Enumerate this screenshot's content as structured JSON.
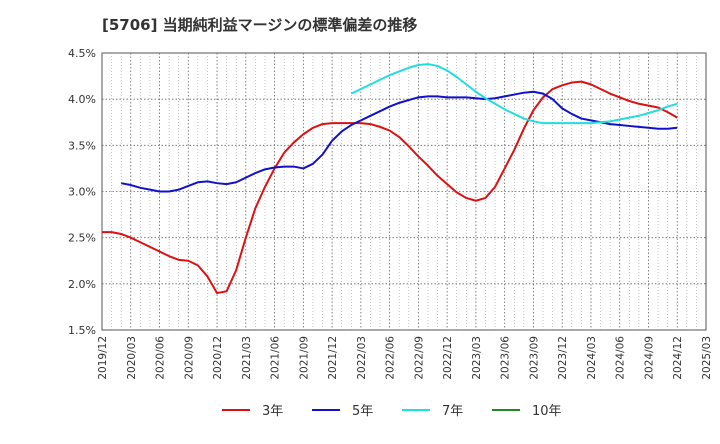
{
  "title": "[5706]  当期純利益マージンの標準偏差の推移",
  "chart_data": {
    "type": "line",
    "title": "[5706]  当期純利益マージンの標準偏差の推移",
    "xlabel": "",
    "ylabel": "",
    "x_ticks": [
      "2019/12",
      "2020/03",
      "2020/06",
      "2020/09",
      "2020/12",
      "2021/03",
      "2021/06",
      "2021/09",
      "2021/12",
      "2022/03",
      "2022/06",
      "2022/09",
      "2022/12",
      "2023/03",
      "2023/06",
      "2023/09",
      "2023/12",
      "2024/03",
      "2024/06",
      "2024/09",
      "2024/12",
      "2025/03"
    ],
    "y_ticks": [
      "1.5%",
      "2.0%",
      "2.5%",
      "3.0%",
      "3.5%",
      "4.0%",
      "4.5%"
    ],
    "ylim": [
      1.5,
      4.5
    ],
    "grid": true,
    "legend_position": "bottom",
    "series": [
      {
        "name": "3年",
        "color": "#dd1111",
        "points": [
          [
            "2019/12",
            2.56
          ],
          [
            "2020/01",
            2.56
          ],
          [
            "2020/02",
            2.54
          ],
          [
            "2020/03",
            2.5
          ],
          [
            "2020/04",
            2.45
          ],
          [
            "2020/05",
            2.4
          ],
          [
            "2020/06",
            2.35
          ],
          [
            "2020/07",
            2.3
          ],
          [
            "2020/08",
            2.26
          ],
          [
            "2020/09",
            2.25
          ],
          [
            "2020/10",
            2.2
          ],
          [
            "2020/11",
            2.08
          ],
          [
            "2020/12",
            1.9
          ],
          [
            "2021/01",
            1.92
          ],
          [
            "2021/02",
            2.15
          ],
          [
            "2021/03",
            2.5
          ],
          [
            "2021/04",
            2.82
          ],
          [
            "2021/05",
            3.05
          ],
          [
            "2021/06",
            3.25
          ],
          [
            "2021/07",
            3.42
          ],
          [
            "2021/08",
            3.53
          ],
          [
            "2021/09",
            3.62
          ],
          [
            "2021/10",
            3.69
          ],
          [
            "2021/11",
            3.73
          ],
          [
            "2021/12",
            3.74
          ],
          [
            "2022/01",
            3.74
          ],
          [
            "2022/02",
            3.74
          ],
          [
            "2022/03",
            3.74
          ],
          [
            "2022/04",
            3.73
          ],
          [
            "2022/05",
            3.7
          ],
          [
            "2022/06",
            3.66
          ],
          [
            "2022/07",
            3.59
          ],
          [
            "2022/08",
            3.49
          ],
          [
            "2022/09",
            3.38
          ],
          [
            "2022/10",
            3.28
          ],
          [
            "2022/11",
            3.17
          ],
          [
            "2022/12",
            3.08
          ],
          [
            "2023/01",
            2.99
          ],
          [
            "2023/02",
            2.93
          ],
          [
            "2023/03",
            2.9
          ],
          [
            "2023/04",
            2.93
          ],
          [
            "2023/05",
            3.05
          ],
          [
            "2023/06",
            3.25
          ],
          [
            "2023/07",
            3.45
          ],
          [
            "2023/08",
            3.68
          ],
          [
            "2023/09",
            3.88
          ],
          [
            "2023/10",
            4.02
          ],
          [
            "2023/11",
            4.11
          ],
          [
            "2023/12",
            4.15
          ],
          [
            "2024/01",
            4.18
          ],
          [
            "2024/02",
            4.19
          ],
          [
            "2024/03",
            4.16
          ],
          [
            "2024/04",
            4.11
          ],
          [
            "2024/05",
            4.06
          ],
          [
            "2024/06",
            4.02
          ],
          [
            "2024/07",
            3.98
          ],
          [
            "2024/08",
            3.95
          ],
          [
            "2024/09",
            3.93
          ],
          [
            "2024/10",
            3.91
          ],
          [
            "2024/11",
            3.86
          ],
          [
            "2024/12",
            3.8
          ]
        ]
      },
      {
        "name": "5年",
        "color": "#1111cc",
        "points": [
          [
            "2020/02",
            3.09
          ],
          [
            "2020/03",
            3.07
          ],
          [
            "2020/04",
            3.04
          ],
          [
            "2020/05",
            3.02
          ],
          [
            "2020/06",
            3.0
          ],
          [
            "2020/07",
            3.0
          ],
          [
            "2020/08",
            3.02
          ],
          [
            "2020/09",
            3.06
          ],
          [
            "2020/10",
            3.1
          ],
          [
            "2020/11",
            3.11
          ],
          [
            "2020/12",
            3.09
          ],
          [
            "2021/01",
            3.08
          ],
          [
            "2021/02",
            3.1
          ],
          [
            "2021/03",
            3.15
          ],
          [
            "2021/04",
            3.2
          ],
          [
            "2021/05",
            3.24
          ],
          [
            "2021/06",
            3.26
          ],
          [
            "2021/07",
            3.27
          ],
          [
            "2021/08",
            3.27
          ],
          [
            "2021/09",
            3.25
          ],
          [
            "2021/10",
            3.3
          ],
          [
            "2021/11",
            3.4
          ],
          [
            "2021/12",
            3.55
          ],
          [
            "2022/01",
            3.65
          ],
          [
            "2022/02",
            3.72
          ],
          [
            "2022/03",
            3.77
          ],
          [
            "2022/04",
            3.82
          ],
          [
            "2022/05",
            3.87
          ],
          [
            "2022/06",
            3.92
          ],
          [
            "2022/07",
            3.96
          ],
          [
            "2022/08",
            3.99
          ],
          [
            "2022/09",
            4.02
          ],
          [
            "2022/10",
            4.03
          ],
          [
            "2022/11",
            4.03
          ],
          [
            "2022/12",
            4.02
          ],
          [
            "2023/01",
            4.02
          ],
          [
            "2023/02",
            4.02
          ],
          [
            "2023/03",
            4.01
          ],
          [
            "2023/04",
            4.0
          ],
          [
            "2023/05",
            4.01
          ],
          [
            "2023/06",
            4.03
          ],
          [
            "2023/07",
            4.05
          ],
          [
            "2023/08",
            4.07
          ],
          [
            "2023/09",
            4.08
          ],
          [
            "2023/10",
            4.06
          ],
          [
            "2023/11",
            4.0
          ],
          [
            "2023/12",
            3.9
          ],
          [
            "2024/01",
            3.84
          ],
          [
            "2024/02",
            3.79
          ],
          [
            "2024/03",
            3.77
          ],
          [
            "2024/04",
            3.75
          ],
          [
            "2024/05",
            3.73
          ],
          [
            "2024/06",
            3.72
          ],
          [
            "2024/07",
            3.71
          ],
          [
            "2024/08",
            3.7
          ],
          [
            "2024/09",
            3.69
          ],
          [
            "2024/10",
            3.68
          ],
          [
            "2024/11",
            3.68
          ],
          [
            "2024/12",
            3.69
          ]
        ]
      },
      {
        "name": "7年",
        "color": "#22dddd",
        "points": [
          [
            "2022/02",
            4.06
          ],
          [
            "2022/03",
            4.11
          ],
          [
            "2022/04",
            4.16
          ],
          [
            "2022/05",
            4.21
          ],
          [
            "2022/06",
            4.26
          ],
          [
            "2022/07",
            4.3
          ],
          [
            "2022/08",
            4.34
          ],
          [
            "2022/09",
            4.37
          ],
          [
            "2022/10",
            4.38
          ],
          [
            "2022/11",
            4.36
          ],
          [
            "2022/12",
            4.31
          ],
          [
            "2023/01",
            4.24
          ],
          [
            "2023/02",
            4.16
          ],
          [
            "2023/03",
            4.08
          ],
          [
            "2023/04",
            4.01
          ],
          [
            "2023/05",
            3.95
          ],
          [
            "2023/06",
            3.89
          ],
          [
            "2023/07",
            3.84
          ],
          [
            "2023/08",
            3.79
          ],
          [
            "2023/09",
            3.76
          ],
          [
            "2023/10",
            3.74
          ],
          [
            "2023/11",
            3.74
          ],
          [
            "2023/12",
            3.74
          ],
          [
            "2024/01",
            3.74
          ],
          [
            "2024/02",
            3.74
          ],
          [
            "2024/03",
            3.74
          ],
          [
            "2024/04",
            3.75
          ],
          [
            "2024/05",
            3.76
          ],
          [
            "2024/06",
            3.78
          ],
          [
            "2024/07",
            3.8
          ],
          [
            "2024/08",
            3.82
          ],
          [
            "2024/09",
            3.85
          ],
          [
            "2024/10",
            3.88
          ],
          [
            "2024/11",
            3.92
          ],
          [
            "2024/12",
            3.95
          ]
        ]
      },
      {
        "name": "10年",
        "color": "#228822",
        "points": []
      }
    ]
  }
}
